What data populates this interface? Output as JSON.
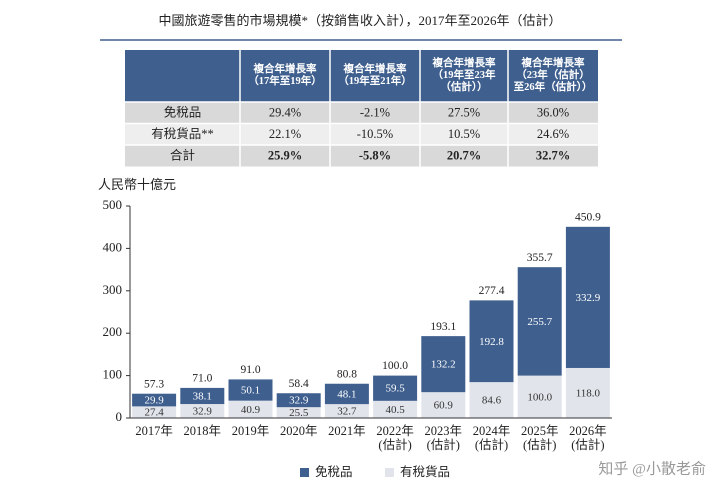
{
  "title": "中國旅遊零售的市場規模*（按銷售收入計），2017年至2026年（估計）",
  "table": {
    "header": [
      "",
      "複合年增長率\n（17年至19年）",
      "複合年增長率\n（19年至21年）",
      "複合年增長率\n（19年至23年\n（估計））",
      "複合年增長率\n（23年（估計）\n至26年（估計））"
    ],
    "rows": [
      [
        "免稅品",
        "29.4%",
        "-2.1%",
        "27.5%",
        "36.0%"
      ],
      [
        "有稅貨品**",
        "22.1%",
        "-10.5%",
        "10.5%",
        "24.6%"
      ],
      [
        "合計",
        "25.9%",
        "-5.8%",
        "20.7%",
        "32.7%"
      ]
    ]
  },
  "chart_data": {
    "type": "stacked_bar",
    "y_label": "人民幣十億元",
    "categories": [
      "2017年",
      "2018年",
      "2019年",
      "2020年",
      "2021年",
      "2022年\n(估計)",
      "2023年\n(估計)",
      "2024年\n(估計)",
      "2025年\n(估計)",
      "2026年\n(估計)"
    ],
    "series": [
      {
        "name": "免稅品",
        "color": "#3f5f8e",
        "values": [
          29.9,
          38.1,
          50.1,
          32.9,
          48.1,
          59.5,
          132.2,
          192.8,
          255.7,
          332.9
        ],
        "value_labels": [
          "29.9",
          "38.1",
          "50.1",
          "32.9",
          "48.1",
          "59.5",
          "132.2",
          "192.8",
          "255.7",
          "332.9"
        ]
      },
      {
        "name": "有稅貨品",
        "color": "#e1e5eb",
        "values": [
          27.4,
          32.9,
          40.9,
          25.5,
          32.7,
          40.5,
          60.9,
          84.6,
          100.0,
          118.0
        ],
        "value_labels": [
          "27.4",
          "32.9",
          "40.9",
          "25.5",
          "32.7",
          "40.5",
          "60.9",
          "84.6",
          "100.0",
          "118.0"
        ]
      }
    ],
    "totals": [
      57.3,
      71.0,
      91.0,
      58.4,
      80.8,
      100.0,
      193.1,
      277.4,
      355.7,
      450.9
    ],
    "total_labels": [
      "57.3",
      "71.0",
      "91.0",
      "58.4",
      "80.8",
      "100.0",
      "193.1",
      "277.4",
      "355.7",
      "450.9"
    ],
    "ylim": [
      0,
      500
    ],
    "yticks": [
      0,
      100,
      200,
      300,
      400,
      500
    ],
    "grid": false
  },
  "watermark": "知乎 @小散老俞"
}
